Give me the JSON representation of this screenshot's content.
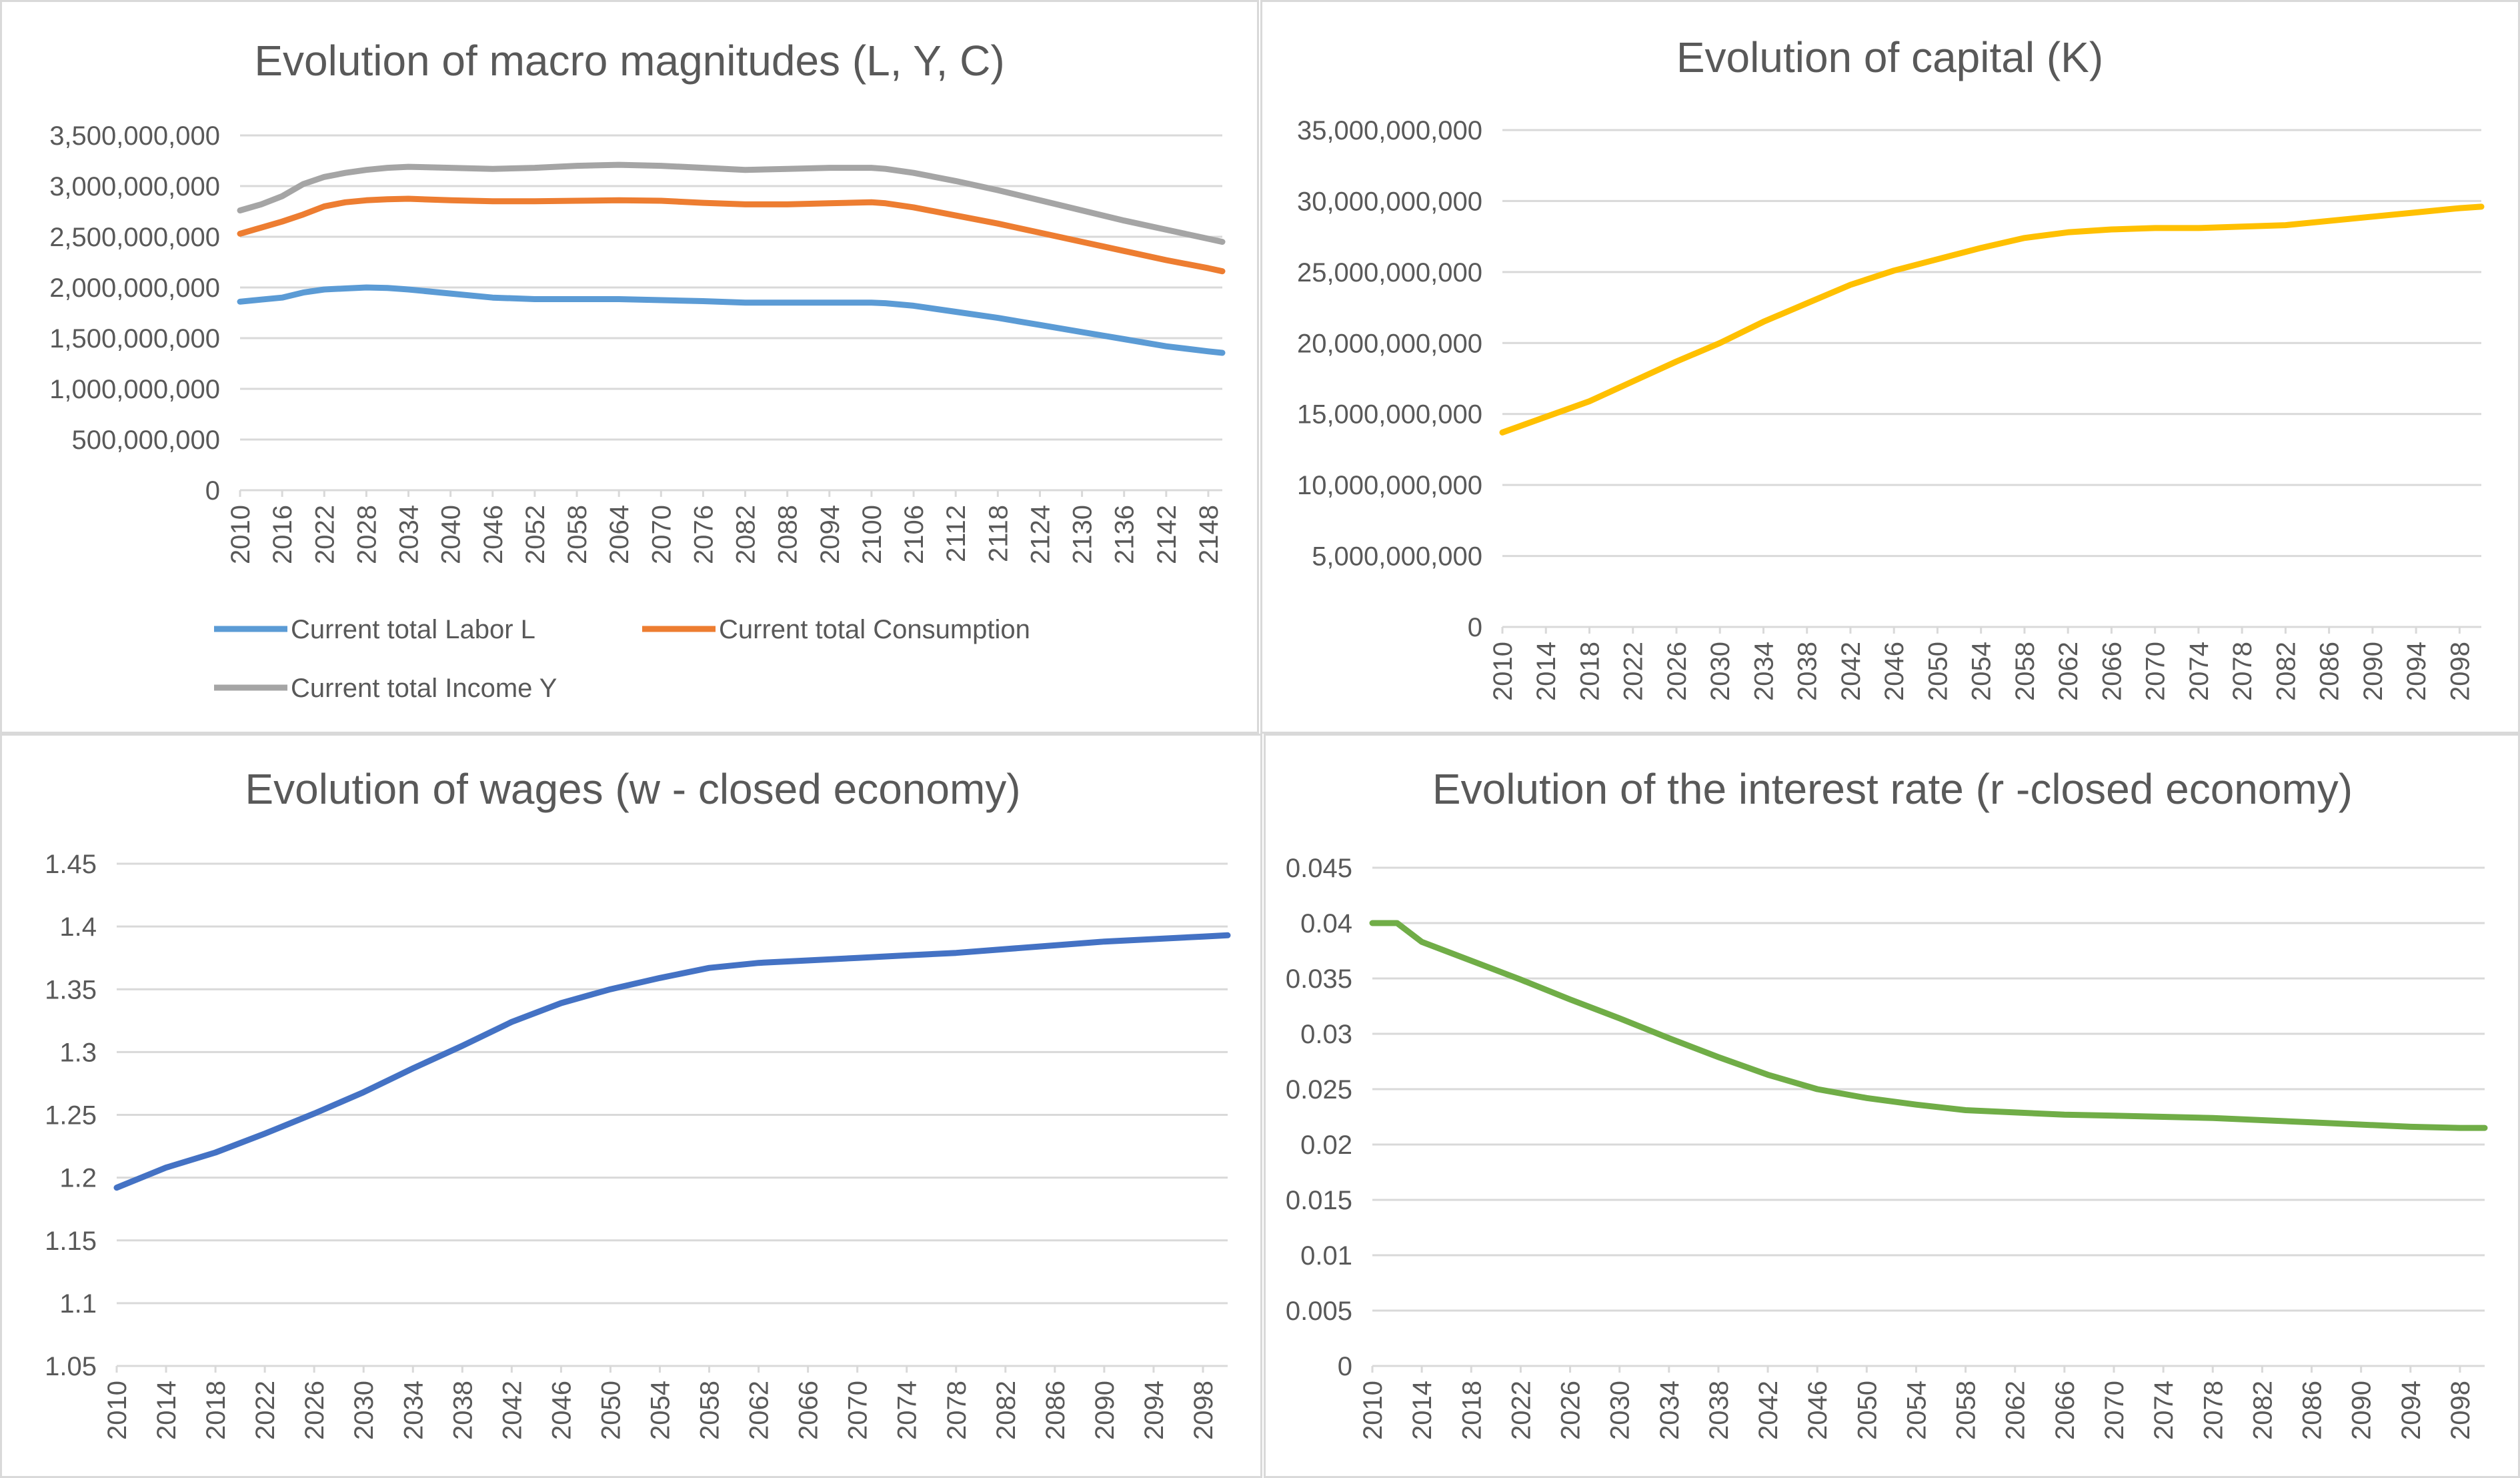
{
  "chart_data": [
    {
      "type": "line",
      "title": "Evolution of macro magnitudes (L, Y, C)",
      "xlabel": "",
      "ylabel": "",
      "ylim": [
        0,
        3500000000
      ],
      "yticks": [
        "0",
        "500,000,000",
        "1,000,000,000",
        "1,500,000,000",
        "2,000,000,000",
        "2,500,000,000",
        "3,000,000,000",
        "3,500,000,000"
      ],
      "xlim": [
        2010,
        2150
      ],
      "xticks": [
        2010,
        2016,
        2022,
        2028,
        2034,
        2040,
        2046,
        2052,
        2058,
        2064,
        2070,
        2076,
        2082,
        2088,
        2094,
        2100,
        2106,
        2112,
        2118,
        2124,
        2130,
        2136,
        2142,
        2148
      ],
      "grid": true,
      "legend": "bottom",
      "series": [
        {
          "name": "Current total Labor L",
          "color": "#5b9bd5",
          "x": [
            2010,
            2013,
            2016,
            2019,
            2022,
            2025,
            2028,
            2031,
            2034,
            2040,
            2046,
            2052,
            2058,
            2064,
            2070,
            2076,
            2082,
            2088,
            2094,
            2100,
            2102,
            2106,
            2112,
            2118,
            2124,
            2130,
            2136,
            2142,
            2148,
            2150
          ],
          "y": [
            1860000000,
            1880000000,
            1900000000,
            1950000000,
            1980000000,
            1990000000,
            2000000000,
            1995000000,
            1980000000,
            1940000000,
            1900000000,
            1885000000,
            1885000000,
            1885000000,
            1875000000,
            1865000000,
            1850000000,
            1850000000,
            1850000000,
            1850000000,
            1845000000,
            1820000000,
            1760000000,
            1700000000,
            1630000000,
            1560000000,
            1490000000,
            1420000000,
            1370000000,
            1355000000
          ]
        },
        {
          "name": "Current total Consumption",
          "color": "#ed7d31",
          "x": [
            2010,
            2013,
            2016,
            2019,
            2022,
            2025,
            2028,
            2031,
            2034,
            2040,
            2046,
            2052,
            2058,
            2064,
            2070,
            2076,
            2082,
            2088,
            2094,
            2100,
            2102,
            2106,
            2112,
            2118,
            2124,
            2130,
            2136,
            2142,
            2148,
            2150
          ],
          "y": [
            2530000000,
            2590000000,
            2650000000,
            2720000000,
            2800000000,
            2840000000,
            2860000000,
            2870000000,
            2875000000,
            2860000000,
            2850000000,
            2850000000,
            2855000000,
            2860000000,
            2855000000,
            2835000000,
            2820000000,
            2820000000,
            2830000000,
            2840000000,
            2830000000,
            2790000000,
            2710000000,
            2630000000,
            2540000000,
            2450000000,
            2360000000,
            2270000000,
            2190000000,
            2160000000
          ]
        },
        {
          "name": "Current total Income Y",
          "color": "#a5a5a5",
          "x": [
            2010,
            2013,
            2016,
            2019,
            2022,
            2025,
            2028,
            2031,
            2034,
            2040,
            2046,
            2052,
            2058,
            2064,
            2070,
            2076,
            2082,
            2088,
            2094,
            2100,
            2102,
            2106,
            2112,
            2118,
            2124,
            2130,
            2136,
            2142,
            2148,
            2150
          ],
          "y": [
            2760000000,
            2820000000,
            2900000000,
            3020000000,
            3090000000,
            3130000000,
            3160000000,
            3180000000,
            3190000000,
            3180000000,
            3170000000,
            3180000000,
            3200000000,
            3210000000,
            3200000000,
            3180000000,
            3160000000,
            3170000000,
            3180000000,
            3180000000,
            3170000000,
            3130000000,
            3050000000,
            2960000000,
            2860000000,
            2760000000,
            2660000000,
            2570000000,
            2480000000,
            2450000000
          ]
        }
      ]
    },
    {
      "type": "line",
      "title": "Evolution of capital (K)",
      "xlabel": "",
      "ylabel": "",
      "ylim": [
        0,
        35000000000
      ],
      "yticks": [
        "0",
        "5,000,000,000",
        "10,000,000,000",
        "15,000,000,000",
        "20,000,000,000",
        "25,000,000,000",
        "30,000,000,000",
        "35,000,000,000"
      ],
      "xlim": [
        2010,
        2100
      ],
      "xticks": [
        2010,
        2014,
        2018,
        2022,
        2026,
        2030,
        2034,
        2038,
        2042,
        2046,
        2050,
        2054,
        2058,
        2062,
        2066,
        2070,
        2074,
        2078,
        2082,
        2086,
        2090,
        2094,
        2098
      ],
      "grid": true,
      "legend": "none",
      "series": [
        {
          "color": "#ffc000",
          "x": [
            2010,
            2014,
            2018,
            2022,
            2026,
            2030,
            2034,
            2038,
            2042,
            2046,
            2050,
            2054,
            2058,
            2062,
            2066,
            2070,
            2074,
            2078,
            2082,
            2086,
            2090,
            2094,
            2098,
            2100
          ],
          "y": [
            13700000000,
            14800000000,
            15900000000,
            17300000000,
            18700000000,
            20000000000,
            21500000000,
            22800000000,
            24100000000,
            25100000000,
            25900000000,
            26700000000,
            27400000000,
            27800000000,
            28000000000,
            28100000000,
            28100000000,
            28200000000,
            28300000000,
            28600000000,
            28900000000,
            29200000000,
            29500000000,
            29600000000
          ]
        }
      ]
    },
    {
      "type": "line",
      "title": "Evolution of wages (w - closed economy)",
      "xlabel": "",
      "ylabel": "",
      "ylim": [
        1.05,
        1.45
      ],
      "yticks": [
        "1.05",
        "1.1",
        "1.15",
        "1.2",
        "1.25",
        "1.3",
        "1.35",
        "1.4",
        "1.45"
      ],
      "xlim": [
        2010,
        2100
      ],
      "xticks": [
        2010,
        2014,
        2018,
        2022,
        2026,
        2030,
        2034,
        2038,
        2042,
        2046,
        2050,
        2054,
        2058,
        2062,
        2066,
        2070,
        2074,
        2078,
        2082,
        2086,
        2090,
        2094,
        2098
      ],
      "grid": true,
      "legend": "none",
      "series": [
        {
          "color": "#4472c4",
          "x": [
            2010,
            2014,
            2018,
            2022,
            2026,
            2030,
            2034,
            2038,
            2042,
            2046,
            2050,
            2054,
            2058,
            2062,
            2066,
            2070,
            2074,
            2078,
            2082,
            2086,
            2090,
            2094,
            2098,
            2100
          ],
          "y": [
            1.192,
            1.208,
            1.22,
            1.235,
            1.251,
            1.268,
            1.287,
            1.305,
            1.324,
            1.339,
            1.35,
            1.359,
            1.367,
            1.371,
            1.373,
            1.375,
            1.377,
            1.379,
            1.382,
            1.385,
            1.388,
            1.39,
            1.392,
            1.393
          ]
        }
      ]
    },
    {
      "type": "line",
      "title": "Evolution of the interest rate (r -closed economy)",
      "xlabel": "",
      "ylabel": "",
      "ylim": [
        0,
        0.045
      ],
      "yticks": [
        "0",
        "0.005",
        "0.01",
        "0.015",
        "0.02",
        "0.025",
        "0.03",
        "0.035",
        "0.04",
        "0.045"
      ],
      "xlim": [
        2010,
        2100
      ],
      "xticks": [
        2010,
        2014,
        2018,
        2022,
        2026,
        2030,
        2034,
        2038,
        2042,
        2046,
        2050,
        2054,
        2058,
        2062,
        2066,
        2070,
        2074,
        2078,
        2082,
        2086,
        2090,
        2094,
        2098
      ],
      "grid": true,
      "legend": "none",
      "series": [
        {
          "color": "#70ad47",
          "x": [
            2010,
            2012,
            2014,
            2018,
            2022,
            2026,
            2030,
            2034,
            2038,
            2042,
            2046,
            2050,
            2054,
            2058,
            2062,
            2066,
            2070,
            2074,
            2078,
            2082,
            2086,
            2090,
            2094,
            2098,
            2100
          ],
          "y": [
            0.04,
            0.04,
            0.0383,
            0.0366,
            0.0349,
            0.0331,
            0.0314,
            0.0296,
            0.0279,
            0.0263,
            0.025,
            0.0242,
            0.0236,
            0.0231,
            0.0229,
            0.0227,
            0.0226,
            0.0225,
            0.0224,
            0.0222,
            0.022,
            0.0218,
            0.0216,
            0.0215,
            0.0215
          ]
        }
      ]
    }
  ]
}
